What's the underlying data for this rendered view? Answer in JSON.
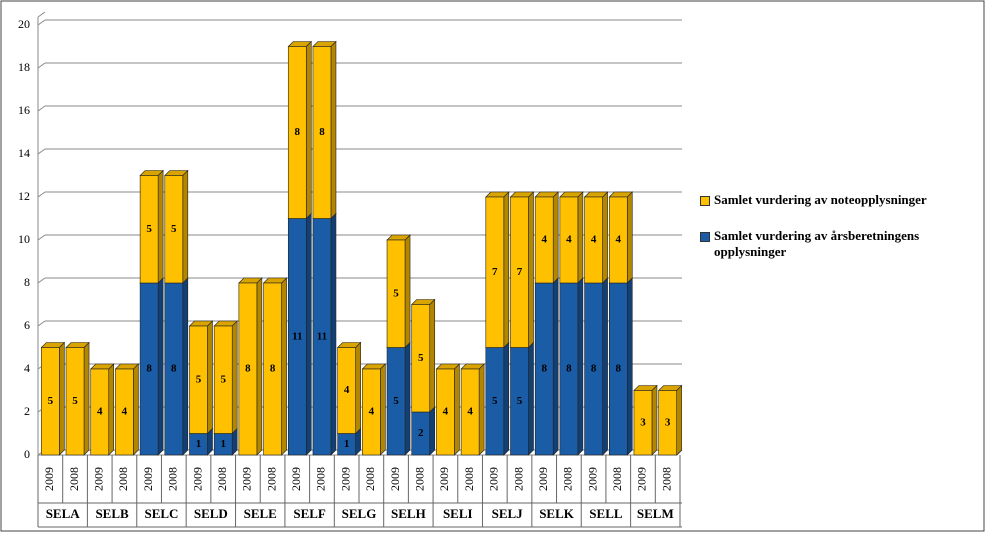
{
  "chart_data": {
    "type": "stacked_bar",
    "groups": [
      "SELA",
      "SELB",
      "SELC",
      "SELD",
      "SELE",
      "SELF",
      "SELG",
      "SELH",
      "SELI",
      "SELJ",
      "SELK",
      "SELL",
      "SELM"
    ],
    "categories": [
      "2009",
      "2008",
      "2009",
      "2008",
      "2009",
      "2008",
      "2009",
      "2008",
      "2009",
      "2008",
      "2009",
      "2008",
      "2009",
      "2008",
      "2009",
      "2008",
      "2009",
      "2008",
      "2009",
      "2008",
      "2009",
      "2008",
      "2009",
      "2008",
      "2009",
      "2008"
    ],
    "series": [
      {
        "name": "Samlet vurdering av årsberetningens opplysninger",
        "color": "#1b5ca6",
        "values": [
          null,
          null,
          null,
          null,
          8,
          8,
          1,
          1,
          null,
          null,
          11,
          11,
          1,
          null,
          5,
          2,
          null,
          null,
          5,
          5,
          8,
          8,
          8,
          8,
          null,
          null
        ]
      },
      {
        "name": "Samlet vurdering av noteopplysninger",
        "color": "#ffc000",
        "values": [
          5,
          5,
          4,
          4,
          5,
          5,
          5,
          5,
          8,
          8,
          8,
          8,
          4,
          4,
          5,
          5,
          4,
          4,
          7,
          7,
          4,
          4,
          4,
          4,
          3,
          3
        ]
      }
    ],
    "ylim": [
      0,
      20
    ],
    "yticks": [
      0,
      2,
      4,
      6,
      8,
      10,
      12,
      14,
      16,
      18,
      20
    ],
    "grid": true
  }
}
